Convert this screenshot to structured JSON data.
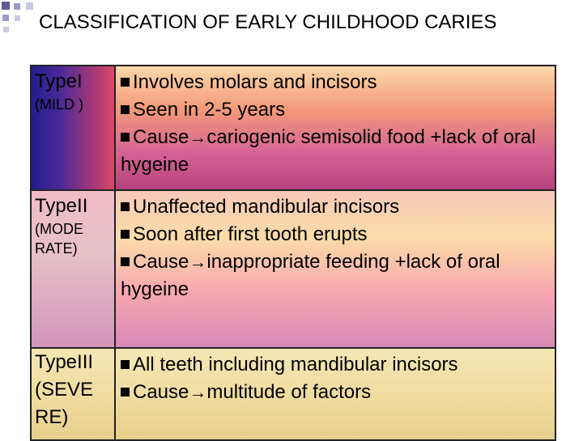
{
  "title": "CLASSIFICATION OF EARLY CHILDHOOD CARIES",
  "rows": [
    {
      "type": "TypeI",
      "severity": "(MILD )",
      "points": [
        {
          "text": "Involves molars and incisors"
        },
        {
          "text": "Seen in 2-5 years"
        },
        {
          "lead": "Cause",
          "rest": "cariogenic semisolid food +lack of oral hygeine"
        }
      ]
    },
    {
      "type": "TypeII",
      "severity": "(MODE RATE)",
      "points": [
        {
          "text": "Unaffected mandibular incisors"
        },
        {
          "text": "Soon after first tooth erupts"
        },
        {
          "lead": "Cause",
          "rest": "inappropriate feeding +lack of oral hygeine"
        }
      ]
    },
    {
      "type": "TypeIII",
      "severity": "(SEVE RE)",
      "points": [
        {
          "text": "All teeth including mandibular incisors"
        },
        {
          "lead": "Cause",
          "rest": "multitude of factors"
        }
      ]
    }
  ],
  "icons": {
    "bullet": "square-bullet-icon",
    "arrow": "right-arrow-icon"
  }
}
